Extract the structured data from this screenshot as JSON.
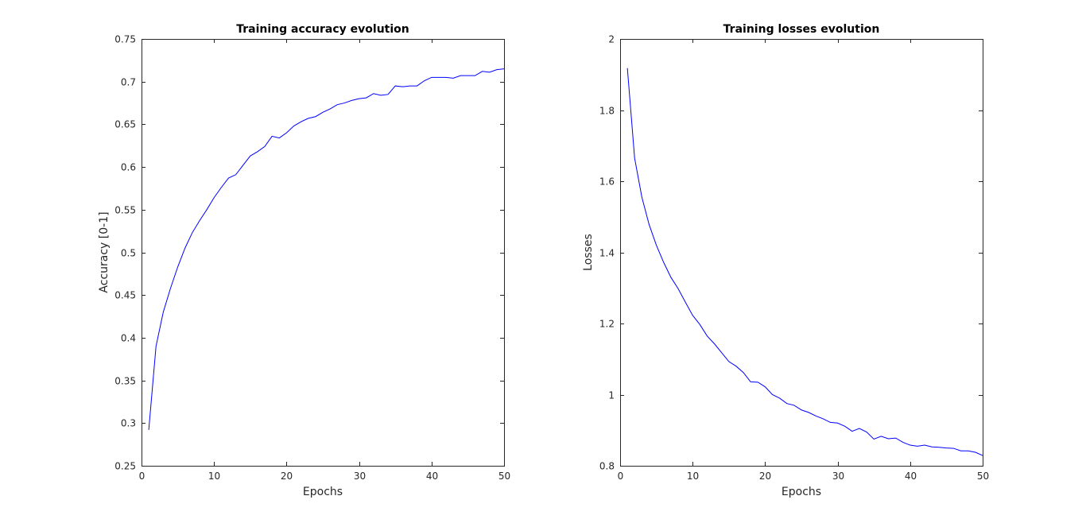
{
  "chart_data": [
    {
      "type": "line",
      "title": "Training accuracy evolution",
      "xlabel": "Epochs",
      "ylabel": "Accuracy [0-1]",
      "xlim": [
        0,
        50
      ],
      "ylim": [
        0.25,
        0.75
      ],
      "xticks": [
        0,
        10,
        20,
        30,
        40,
        50
      ],
      "xtick_labels": [
        "0",
        "10",
        "20",
        "30",
        "40",
        "50"
      ],
      "yticks": [
        0.25,
        0.3,
        0.35,
        0.4,
        0.45,
        0.5,
        0.55,
        0.6,
        0.65,
        0.7,
        0.75
      ],
      "ytick_labels": [
        "0.25",
        "0.3",
        "0.35",
        "0.4",
        "0.45",
        "0.5",
        "0.55",
        "0.6",
        "0.65",
        "0.7",
        "0.75"
      ],
      "grid": false,
      "series": [
        {
          "color": "#0000ff",
          "x": [
            1,
            2,
            3,
            4,
            5,
            6,
            7,
            8,
            9,
            10,
            11,
            12,
            13,
            14,
            15,
            16,
            17,
            18,
            19,
            20,
            21,
            22,
            23,
            24,
            25,
            26,
            27,
            28,
            29,
            30,
            31,
            32,
            33,
            34,
            35,
            36,
            37,
            38,
            39,
            40,
            41,
            42,
            43,
            44,
            45,
            46,
            47,
            48,
            49,
            50
          ],
          "y": [
            0.292,
            0.39,
            0.43,
            0.458,
            0.483,
            0.505,
            0.523,
            0.537,
            0.55,
            0.564,
            0.576,
            0.587,
            0.591,
            0.602,
            0.613,
            0.618,
            0.624,
            0.636,
            0.634,
            0.64,
            0.648,
            0.653,
            0.657,
            0.659,
            0.664,
            0.668,
            0.673,
            0.675,
            0.678,
            0.68,
            0.681,
            0.686,
            0.684,
            0.685,
            0.695,
            0.694,
            0.695,
            0.695,
            0.701,
            0.705,
            0.705,
            0.705,
            0.704,
            0.707,
            0.707,
            0.707,
            0.712,
            0.711,
            0.714,
            0.715
          ]
        }
      ]
    },
    {
      "type": "line",
      "title": "Training losses evolution",
      "xlabel": "Epochs",
      "ylabel": "Losses",
      "xlim": [
        0,
        50
      ],
      "ylim": [
        0.8,
        2.0
      ],
      "xticks": [
        0,
        10,
        20,
        30,
        40,
        50
      ],
      "xtick_labels": [
        "0",
        "10",
        "20",
        "30",
        "40",
        "50"
      ],
      "yticks": [
        0.8,
        1.0,
        1.2,
        1.4,
        1.6,
        1.8,
        2.0
      ],
      "ytick_labels": [
        "0.8",
        "1",
        "1.2",
        "1.4",
        "1.6",
        "1.8",
        "2"
      ],
      "grid": false,
      "series": [
        {
          "color": "#0000ff",
          "x": [
            1,
            2,
            3,
            4,
            5,
            6,
            7,
            8,
            9,
            10,
            11,
            12,
            13,
            14,
            15,
            16,
            17,
            18,
            19,
            20,
            21,
            22,
            23,
            24,
            25,
            26,
            27,
            28,
            29,
            30,
            31,
            32,
            33,
            34,
            35,
            36,
            37,
            38,
            39,
            40,
            41,
            42,
            43,
            44,
            45,
            46,
            47,
            48,
            49,
            50
          ],
          "y": [
            1.918,
            1.665,
            1.555,
            1.478,
            1.42,
            1.372,
            1.33,
            1.298,
            1.26,
            1.223,
            1.197,
            1.165,
            1.143,
            1.118,
            1.093,
            1.08,
            1.062,
            1.036,
            1.035,
            1.022,
            1.0,
            0.99,
            0.975,
            0.97,
            0.957,
            0.95,
            0.94,
            0.932,
            0.922,
            0.92,
            0.911,
            0.897,
            0.905,
            0.895,
            0.875,
            0.883,
            0.876,
            0.878,
            0.866,
            0.858,
            0.855,
            0.858,
            0.853,
            0.852,
            0.85,
            0.849,
            0.842,
            0.842,
            0.838,
            0.829
          ]
        }
      ]
    }
  ]
}
